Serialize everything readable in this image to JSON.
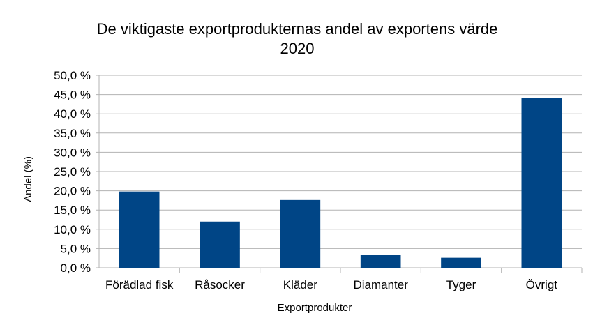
{
  "chart_data": {
    "type": "bar",
    "title": "De viktigaste exportprodukternas andel av exportens värde",
    "subtitle": "2020",
    "xlabel": "Exportprodukter",
    "ylabel": "Andel (%)",
    "categories": [
      "Förädlad fisk",
      "Råsocker",
      "Kläder",
      "Diamanter",
      "Tyger",
      "Övrigt"
    ],
    "values": [
      19.8,
      12.0,
      17.6,
      3.3,
      2.6,
      44.2
    ],
    "ylim": [
      0,
      50
    ],
    "yticks": [
      0,
      5,
      10,
      15,
      20,
      25,
      30,
      35,
      40,
      45,
      50
    ],
    "ytick_labels": [
      "0,0 %",
      "5,0 %",
      "10,0 %",
      "15,0 %",
      "20,0 %",
      "25,0 %",
      "30,0 %",
      "35,0 %",
      "40,0 %",
      "45,0 %",
      "50,0 %"
    ],
    "grid": true,
    "legend": "none",
    "bar_color": "#004586"
  }
}
